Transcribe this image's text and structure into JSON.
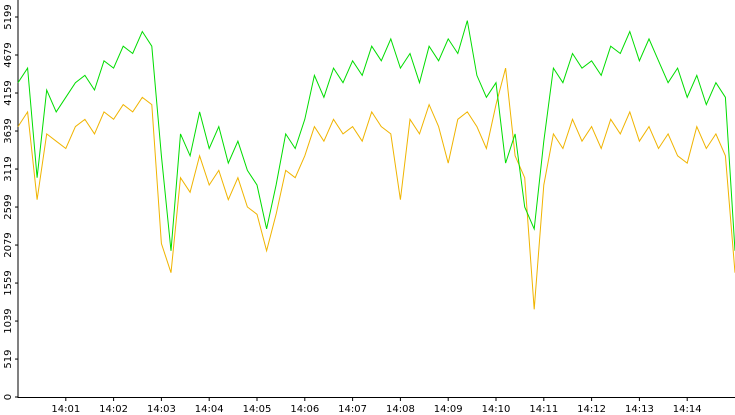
{
  "chart_data": {
    "type": "line",
    "x": [
      0,
      0.2,
      0.4,
      0.6,
      0.8,
      1,
      1.2,
      1.4,
      1.6,
      1.8,
      2,
      2.2,
      2.4,
      2.6,
      2.8,
      3,
      3.2,
      3.4,
      3.6,
      3.8,
      4,
      4.2,
      4.4,
      4.6,
      4.8,
      5,
      5.2,
      5.4,
      5.6,
      5.8,
      6,
      6.2,
      6.4,
      6.6,
      6.8,
      7,
      7.2,
      7.4,
      7.6,
      7.8,
      8,
      8.2,
      8.4,
      8.6,
      8.8,
      9,
      9.2,
      9.4,
      9.6,
      9.8,
      10,
      10.2,
      10.4,
      10.6,
      10.8,
      11,
      11.2,
      11.4,
      11.6,
      11.8,
      12,
      12.2,
      12.4,
      12.6,
      12.8,
      13,
      13.2,
      13.4,
      13.6,
      13.8,
      14,
      14.2,
      14.4,
      14.6,
      14.8,
      15
    ],
    "series": [
      {
        "color": "#00dd00",
        "values": [
          4300,
          4500,
          3000,
          4200,
          3900,
          4100,
          4300,
          4400,
          4200,
          4600,
          4500,
          4800,
          4700,
          5000,
          4800,
          3300,
          2000,
          3600,
          3300,
          3900,
          3400,
          3700,
          3200,
          3500,
          3100,
          2900,
          2300,
          2900,
          3600,
          3400,
          3800,
          4400,
          4100,
          4500,
          4300,
          4600,
          4400,
          4800,
          4600,
          4900,
          4500,
          4700,
          4300,
          4800,
          4600,
          4900,
          4700,
          5150,
          4400,
          4100,
          4300,
          3200,
          3600,
          2600,
          2300,
          3500,
          4500,
          4300,
          4700,
          4500,
          4600,
          4400,
          4800,
          4700,
          5000,
          4600,
          4900,
          4600,
          4300,
          4500,
          4100,
          4400,
          4000,
          4300,
          4100,
          2000
        ]
      },
      {
        "color": "#f0b400",
        "values": [
          3700,
          3900,
          2700,
          3600,
          3500,
          3400,
          3700,
          3800,
          3600,
          3900,
          3800,
          4000,
          3900,
          4100,
          4000,
          2100,
          1700,
          3000,
          2800,
          3300,
          2900,
          3100,
          2700,
          3000,
          2600,
          2500,
          2000,
          2500,
          3100,
          3000,
          3300,
          3700,
          3500,
          3800,
          3600,
          3700,
          3500,
          3900,
          3700,
          3600,
          2700,
          3800,
          3600,
          4000,
          3700,
          3200,
          3800,
          3900,
          3700,
          3400,
          4000,
          4500,
          3300,
          3000,
          1200,
          2900,
          3600,
          3400,
          3800,
          3500,
          3700,
          3400,
          3800,
          3600,
          3900,
          3500,
          3700,
          3400,
          3600,
          3300,
          3200,
          3700,
          3400,
          3600,
          3300,
          1700
        ]
      }
    ],
    "xlim": [
      0,
      15
    ],
    "xticks": [
      {
        "value": 1,
        "label": "14:01"
      },
      {
        "value": 2,
        "label": "14:02"
      },
      {
        "value": 3,
        "label": "14:03"
      },
      {
        "value": 4,
        "label": "14:04"
      },
      {
        "value": 5,
        "label": "14:05"
      },
      {
        "value": 6,
        "label": "14:06"
      },
      {
        "value": 7,
        "label": "14:07"
      },
      {
        "value": 8,
        "label": "14:08"
      },
      {
        "value": 9,
        "label": "14:09"
      },
      {
        "value": 10,
        "label": "14:10"
      },
      {
        "value": 11,
        "label": "14:11"
      },
      {
        "value": 12,
        "label": "14:12"
      },
      {
        "value": 13,
        "label": "14:13"
      },
      {
        "value": 14,
        "label": "14:14"
      }
    ],
    "ylim": [
      0,
      5199
    ],
    "yticks": [
      0,
      519,
      1039,
      1559,
      2079,
      2599,
      3119,
      3639,
      4159,
      4679,
      5199
    ]
  }
}
